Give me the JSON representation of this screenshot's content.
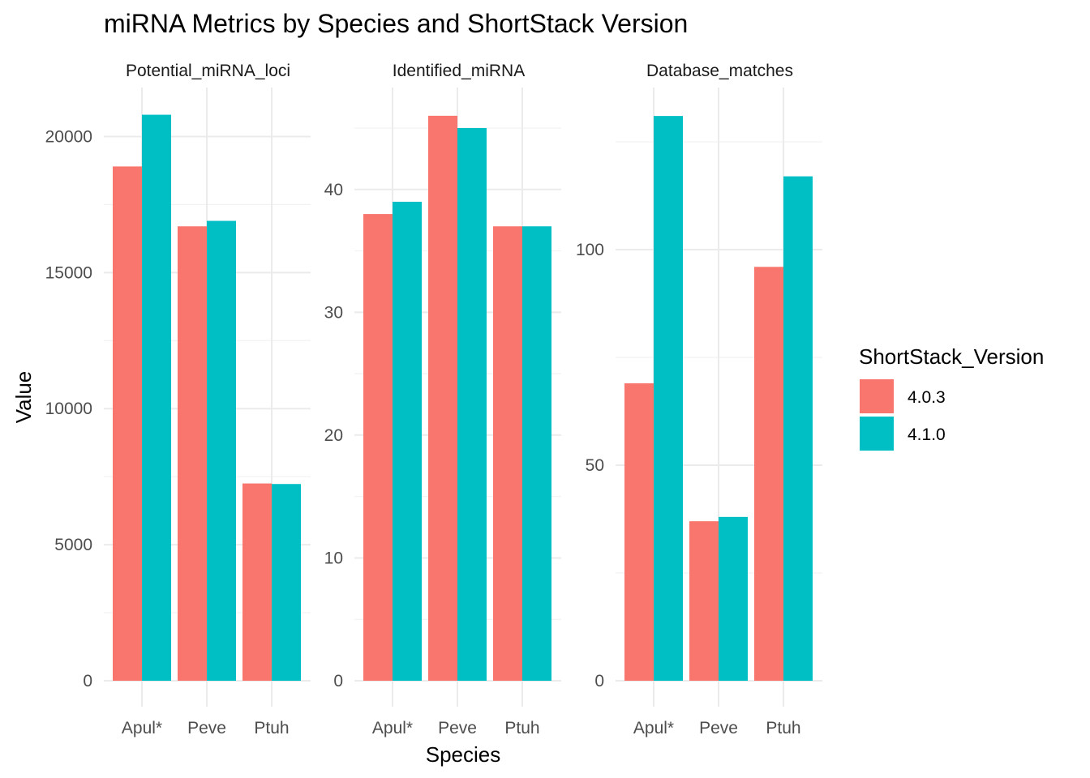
{
  "chart_data": {
    "type": "bar",
    "title": "miRNA Metrics by Species and ShortStack Version",
    "xlabel": "Species",
    "ylabel": "Value",
    "categories": [
      "Apul*",
      "Peve",
      "Ptuh"
    ],
    "legend": {
      "title": "ShortStack_Version",
      "placement": "right",
      "entries": [
        {
          "label": "4.0.3",
          "color": "#F8766D"
        },
        {
          "label": "4.1.0",
          "color": "#00BFC4"
        }
      ]
    },
    "grid": true,
    "facets": [
      {
        "name": "Potential_miRNA_loci",
        "ylim": [
          0,
          21800
        ],
        "yticks": [
          0,
          5000,
          10000,
          15000,
          20000
        ],
        "yticks_minor": [
          2500,
          7500,
          12500,
          17500
        ],
        "series": [
          {
            "name": "4.0.3",
            "values": [
              18900,
              16700,
              7250
            ]
          },
          {
            "name": "4.1.0",
            "values": [
              20800,
              16900,
              7230
            ]
          }
        ]
      },
      {
        "name": "Identified_miRNA",
        "ylim": [
          0,
          48.3
        ],
        "yticks": [
          0,
          10,
          20,
          30,
          40
        ],
        "yticks_minor": [
          5,
          15,
          25,
          35,
          45
        ],
        "series": [
          {
            "name": "4.0.3",
            "values": [
              38,
              46,
              37
            ]
          },
          {
            "name": "4.1.0",
            "values": [
              39,
              45,
              37
            ]
          }
        ]
      },
      {
        "name": "Database_matches",
        "ylim": [
          0,
          137.6
        ],
        "yticks": [
          0,
          50,
          100
        ],
        "yticks_minor": [
          25,
          75,
          125
        ],
        "series": [
          {
            "name": "4.0.3",
            "values": [
              69,
              37,
              96
            ]
          },
          {
            "name": "4.1.0",
            "values": [
              131,
              38,
              117
            ]
          }
        ]
      }
    ]
  }
}
